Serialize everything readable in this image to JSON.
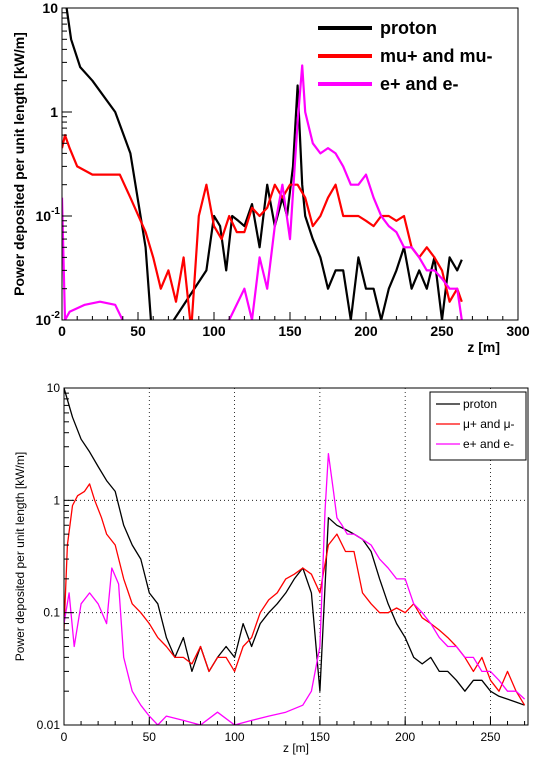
{
  "chart_data": [
    {
      "type": "line",
      "xlabel": "z [m]",
      "ylabel": "Power deposited per unit length [kW/m]",
      "xlim": [
        0,
        300
      ],
      "ylim": [
        0.01,
        10
      ],
      "yscale": "log",
      "grid": false,
      "legend_position": "top-right",
      "xticks": [
        "0",
        "50",
        "100",
        "150",
        "200",
        "250",
        "300"
      ],
      "yticks": [
        {
          "base": "10",
          "exp": "-2"
        },
        {
          "base": "10",
          "exp": "-1"
        },
        {
          "base": "1",
          "exp": ""
        },
        {
          "base": "10",
          "exp": ""
        }
      ],
      "series": [
        {
          "name": "proton",
          "color": "#000000",
          "x": [
            0,
            3,
            6,
            12,
            20,
            35,
            45,
            55,
            60,
            95,
            100,
            104,
            108,
            112,
            116,
            120,
            125,
            130,
            135,
            140,
            145,
            148,
            152,
            155,
            158,
            160,
            165,
            170,
            175,
            180,
            185,
            190,
            195,
            200,
            205,
            210,
            215,
            220,
            225,
            230,
            235,
            240,
            245,
            250,
            255,
            260,
            263
          ],
          "y": [
            40,
            10,
            5,
            2.7,
            2,
            1,
            0.4,
            0.05,
            0.005,
            0.03,
            0.1,
            0.08,
            0.03,
            0.1,
            0.09,
            0.08,
            0.13,
            0.05,
            0.2,
            0.08,
            0.15,
            0.1,
            0.3,
            1.8,
            0.2,
            0.1,
            0.06,
            0.04,
            0.02,
            0.03,
            0.03,
            0.01,
            0.04,
            0.02,
            0.02,
            0.01,
            0.02,
            0.03,
            0.05,
            0.02,
            0.03,
            0.02,
            0.04,
            0.01,
            0.04,
            0.03,
            0.038
          ]
        },
        {
          "name": "mu+ and mu-",
          "color": "#ff0000",
          "x": [
            0,
            2,
            5,
            10,
            20,
            30,
            38,
            45,
            55,
            60,
            65,
            70,
            75,
            80,
            85,
            90,
            95,
            100,
            105,
            110,
            115,
            120,
            125,
            130,
            135,
            140,
            145,
            150,
            155,
            160,
            165,
            170,
            175,
            180,
            185,
            190,
            195,
            200,
            205,
            210,
            215,
            220,
            225,
            230,
            235,
            240,
            245,
            250,
            255,
            260,
            263
          ],
          "y": [
            0.45,
            0.6,
            0.45,
            0.3,
            0.25,
            0.25,
            0.25,
            0.15,
            0.07,
            0.04,
            0.02,
            0.03,
            0.015,
            0.04,
            0.008,
            0.1,
            0.2,
            0.08,
            0.06,
            0.1,
            0.07,
            0.07,
            0.12,
            0.1,
            0.12,
            0.2,
            0.15,
            0.2,
            0.2,
            0.15,
            0.08,
            0.1,
            0.15,
            0.2,
            0.1,
            0.1,
            0.1,
            0.09,
            0.08,
            0.1,
            0.1,
            0.09,
            0.1,
            0.05,
            0.04,
            0.05,
            0.04,
            0.03,
            0.015,
            0.02,
            0.015
          ]
        },
        {
          "name": "e+ and e-",
          "color": "#ff00ff",
          "x": [
            0,
            2,
            5,
            15,
            25,
            35,
            45,
            50,
            110,
            120,
            125,
            130,
            135,
            140,
            145,
            150,
            155,
            158,
            160,
            165,
            170,
            175,
            180,
            185,
            190,
            195,
            200,
            205,
            210,
            215,
            220,
            225,
            230,
            235,
            240,
            245,
            250,
            255,
            260,
            263
          ],
          "y": [
            0.15,
            0.01,
            0.012,
            0.014,
            0.015,
            0.014,
            0.007,
            0.004,
            0.01,
            0.02,
            0.01,
            0.04,
            0.02,
            0.08,
            0.2,
            0.06,
            0.8,
            2.8,
            1,
            0.5,
            0.4,
            0.45,
            0.4,
            0.3,
            0.2,
            0.2,
            0.25,
            0.15,
            0.1,
            0.08,
            0.07,
            0.05,
            0.05,
            0.04,
            0.03,
            0.03,
            0.025,
            0.02,
            0.02,
            0.01
          ]
        }
      ]
    },
    {
      "type": "line",
      "xlabel": "z [m]",
      "ylabel": "Power deposited per unit length [kW/m]",
      "xlim": [
        0,
        272
      ],
      "ylim": [
        0.01,
        10
      ],
      "yscale": "log",
      "grid": true,
      "legend_position": "top-right",
      "xticks": [
        "0",
        "50",
        "100",
        "150",
        "200",
        "250"
      ],
      "yticks": [
        "0.01",
        "0.1",
        "1",
        "10"
      ],
      "series": [
        {
          "name": "proton",
          "color": "#000000",
          "x": [
            0,
            5,
            10,
            15,
            20,
            25,
            30,
            35,
            40,
            45,
            50,
            55,
            60,
            65,
            70,
            75,
            80,
            85,
            90,
            95,
            100,
            105,
            110,
            115,
            120,
            125,
            130,
            135,
            140,
            145,
            150,
            155,
            160,
            165,
            170,
            175,
            180,
            185,
            190,
            195,
            200,
            205,
            210,
            215,
            220,
            225,
            230,
            235,
            240,
            245,
            250,
            255,
            260,
            265,
            270
          ],
          "y": [
            10,
            5.5,
            3.5,
            2.7,
            2,
            1.5,
            1.2,
            0.6,
            0.4,
            0.3,
            0.15,
            0.12,
            0.06,
            0.04,
            0.06,
            0.03,
            0.05,
            0.03,
            0.04,
            0.05,
            0.04,
            0.08,
            0.05,
            0.08,
            0.1,
            0.12,
            0.15,
            0.2,
            0.25,
            0.15,
            0.02,
            0.7,
            0.6,
            0.55,
            0.5,
            0.45,
            0.35,
            0.2,
            0.12,
            0.08,
            0.06,
            0.04,
            0.035,
            0.04,
            0.03,
            0.03,
            0.025,
            0.02,
            0.025,
            0.025,
            0.02,
            0.018,
            0.017,
            0.016,
            0.015
          ]
        },
        {
          "name": "μ+ and μ-",
          "color": "#ff0000",
          "x": [
            0,
            2,
            5,
            8,
            12,
            15,
            18,
            22,
            25,
            30,
            35,
            40,
            45,
            50,
            55,
            60,
            65,
            70,
            75,
            80,
            85,
            90,
            95,
            100,
            105,
            110,
            115,
            120,
            125,
            130,
            135,
            140,
            145,
            150,
            155,
            160,
            165,
            170,
            175,
            180,
            185,
            190,
            195,
            200,
            205,
            210,
            215,
            220,
            225,
            230,
            235,
            240,
            245,
            250,
            255,
            260,
            265,
            270
          ],
          "y": [
            0.07,
            0.4,
            0.9,
            1.1,
            1.2,
            1.4,
            1,
            0.7,
            0.5,
            0.4,
            0.2,
            0.12,
            0.1,
            0.08,
            0.06,
            0.05,
            0.04,
            0.04,
            0.035,
            0.05,
            0.03,
            0.04,
            0.04,
            0.03,
            0.05,
            0.06,
            0.1,
            0.13,
            0.15,
            0.2,
            0.22,
            0.25,
            0.22,
            0.15,
            0.4,
            0.5,
            0.35,
            0.35,
            0.15,
            0.12,
            0.1,
            0.1,
            0.11,
            0.1,
            0.12,
            0.09,
            0.08,
            0.07,
            0.06,
            0.05,
            0.04,
            0.03,
            0.04,
            0.025,
            0.02,
            0.03,
            0.02,
            0.015
          ]
        },
        {
          "name": "e+ and e-",
          "color": "#ff00ff",
          "x": [
            0,
            3,
            6,
            10,
            15,
            20,
            25,
            28,
            32,
            35,
            40,
            45,
            50,
            55,
            60,
            70,
            80,
            90,
            100,
            110,
            120,
            130,
            140,
            145,
            150,
            153,
            155,
            158,
            160,
            163,
            166,
            170,
            175,
            180,
            185,
            190,
            195,
            200,
            205,
            210,
            215,
            220,
            225,
            230,
            235,
            240,
            245,
            250,
            255,
            260,
            265,
            270
          ],
          "y": [
            0.08,
            0.15,
            0.05,
            0.12,
            0.15,
            0.12,
            0.08,
            0.25,
            0.18,
            0.04,
            0.02,
            0.015,
            0.012,
            0.01,
            0.012,
            0.011,
            0.01,
            0.013,
            0.01,
            0.011,
            0.012,
            0.013,
            0.015,
            0.02,
            0.05,
            0.8,
            2.6,
            1.2,
            0.7,
            0.6,
            0.5,
            0.5,
            0.45,
            0.4,
            0.3,
            0.25,
            0.2,
            0.2,
            0.12,
            0.1,
            0.08,
            0.06,
            0.05,
            0.05,
            0.04,
            0.04,
            0.03,
            0.03,
            0.025,
            0.02,
            0.02,
            0.017
          ]
        }
      ]
    }
  ]
}
